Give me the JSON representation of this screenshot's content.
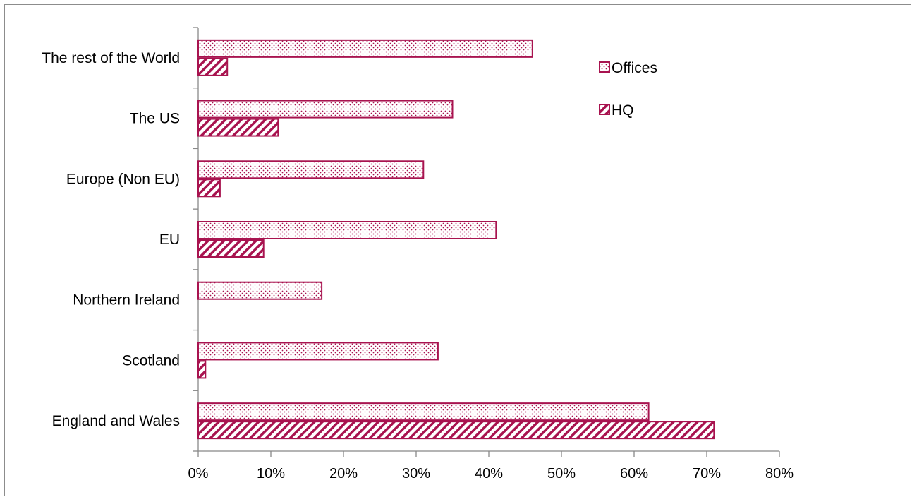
{
  "chart_data": {
    "type": "bar",
    "orientation": "horizontal",
    "categories": [
      "England and Wales",
      "Scotland",
      "Northern Ireland",
      "EU",
      "Europe (Non EU)",
      "The US",
      "The rest of the World"
    ],
    "series": [
      {
        "name": "Offices",
        "values": [
          62,
          33,
          17,
          41,
          31,
          35,
          46
        ],
        "pattern": "dots"
      },
      {
        "name": "HQ",
        "values": [
          71,
          1,
          0,
          9,
          3,
          11,
          4
        ],
        "pattern": "diagonal"
      }
    ],
    "xlim": [
      0,
      80
    ],
    "x_ticks": [
      "0%",
      "10%",
      "20%",
      "30%",
      "40%",
      "50%",
      "60%",
      "70%",
      "80%"
    ],
    "value_unit": "%",
    "grid": false,
    "legend_position": "top-right",
    "colors": {
      "bar": "#a8134f",
      "axis": "#888888"
    }
  }
}
